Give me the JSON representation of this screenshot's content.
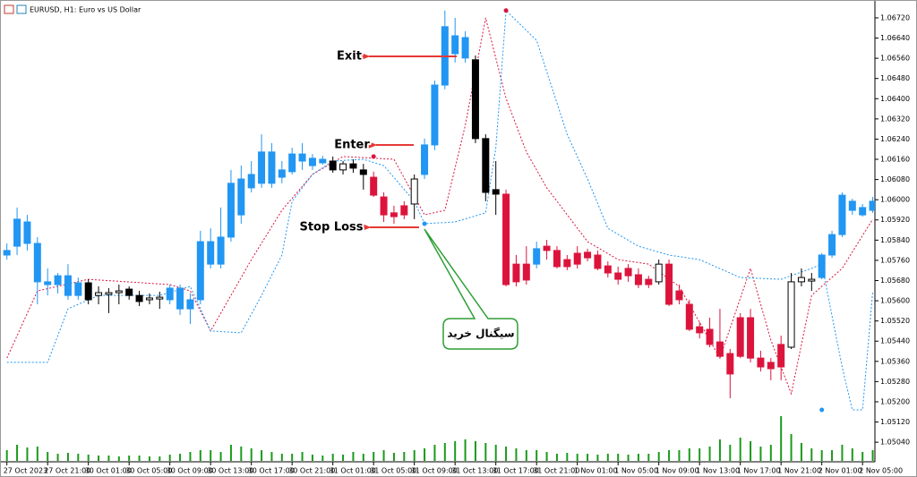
{
  "chart_data": {
    "type": "candlestick",
    "title": "EURUSD, H1:  Euro vs US Dollar",
    "categories": [
      "27 Oct 2023",
      null,
      null,
      null,
      "27 Oct 21:00",
      null,
      null,
      null,
      "30 Oct 01:00",
      null,
      null,
      null,
      "30 Oct 05:00",
      null,
      null,
      null,
      "30 Oct 09:00",
      null,
      null,
      null,
      "30 Oct 13:00",
      null,
      null,
      null,
      "30 Oct 17:00",
      null,
      null,
      null,
      "30 Oct 21:00",
      null,
      null,
      null,
      "31 Oct 01:00",
      null,
      null,
      null,
      "31 Oct 05:00",
      null,
      null,
      null,
      "31 Oct 09:00",
      null,
      null,
      null,
      "31 Oct 13:00",
      null,
      null,
      null,
      "31 Oct 17:00",
      null,
      null,
      null,
      "31 Oct 21:00",
      null,
      null,
      null,
      "1 Nov 01:00",
      null,
      null,
      null,
      "1 Nov 05:00",
      null,
      null,
      null,
      "1 Nov 09:00",
      null,
      null,
      null,
      "1 Nov 13:00",
      null,
      null,
      null,
      "1 Nov 17:00",
      null,
      null,
      null,
      "1 Nov 21:00",
      null,
      null,
      null,
      "2 Nov 01:00",
      null,
      null,
      null,
      "2 Nov 05:00",
      null
    ],
    "open": [
      1.05781,
      1.05816,
      1.05912,
      1.05827,
      1.05675,
      1.05664,
      1.05699,
      1.05621,
      1.05671,
      1.05621,
      1.05625,
      1.05632,
      1.05646,
      1.05621,
      1.05604,
      1.05607,
      1.05604,
      1.0565,
      1.05568,
      1.05604,
      1.05745,
      1.05745,
      1.05852,
      1.0594,
      1.06047,
      1.06065,
      1.06189,
      1.06089,
      1.06111,
      1.06153,
      1.06135,
      1.0616,
      1.06153,
      1.06118,
      1.06142,
      1.06118,
      1.06089,
      1.06011,
      1.05948,
      1.05976,
      1.05983,
      1.061,
      1.06217,
      1.06454,
      1.06578,
      1.06561,
      1.06554,
      1.06242,
      1.0604,
      1.06022,
      1.05745,
      1.05745,
      1.05745,
      1.05816,
      1.05799,
      1.05763,
      1.05788,
      1.05792,
      1.05781,
      1.05738,
      1.0571,
      1.05728,
      1.05703,
      1.05685,
      1.05675,
      1.05745,
      1.05639,
      1.05586,
      1.05497,
      1.05487,
      1.05437,
      1.05391,
      1.05533,
      1.05533,
      1.05373,
      1.05356,
      1.05427,
      1.05416,
      1.05675,
      1.05678,
      1.05692,
      1.05781,
      1.05862,
      1.05958,
      1.0594,
      1.05958
    ],
    "high": [
      1.05827,
      1.05969,
      1.0594,
      1.05852,
      1.05728,
      1.0571,
      1.05745,
      1.05692,
      1.05685,
      1.05657,
      1.0565,
      1.05664,
      1.05657,
      1.05639,
      1.05629,
      1.05636,
      1.05664,
      1.05664,
      1.05629,
      1.05877,
      1.05887,
      1.05969,
      1.06118,
      1.06135,
      1.06153,
      1.06259,
      1.06224,
      1.06153,
      1.06206,
      1.06224,
      1.06181,
      1.06174,
      1.06171,
      1.06153,
      1.0616,
      1.06142,
      1.06111,
      1.06029,
      1.05976,
      1.05994,
      1.061,
      1.06242,
      1.06472,
      1.06749,
      1.0672,
      1.06667,
      1.06571,
      1.06259,
      1.06153,
      1.0604,
      1.05781,
      1.05816,
      1.05834,
      1.05841,
      1.05816,
      1.05781,
      1.05816,
      1.05806,
      1.05799,
      1.05756,
      1.05735,
      1.05745,
      1.05728,
      1.05699,
      1.05763,
      1.05763,
      1.05664,
      1.05604,
      1.05515,
      1.05533,
      1.05568,
      1.05409,
      1.05551,
      1.05568,
      1.05402,
      1.05373,
      1.05462,
      1.0571,
      1.05728,
      1.0571,
      1.05788,
      1.05877,
      1.06029,
      1.06004,
      1.05983,
      1.06011
    ],
    "low": [
      1.05763,
      1.05781,
      1.05799,
      1.05586,
      1.05621,
      1.05629,
      1.05604,
      1.05604,
      1.05586,
      1.05586,
      1.05551,
      1.05586,
      1.05604,
      1.05579,
      1.05586,
      1.05568,
      1.05586,
      1.05544,
      1.05508,
      1.05586,
      1.05728,
      1.05728,
      1.05834,
      1.05905,
      1.06029,
      1.06047,
      1.06047,
      1.06065,
      1.061,
      1.06118,
      1.06118,
      1.06139,
      1.06107,
      1.061,
      1.06107,
      1.0604,
      1.06011,
      1.05912,
      1.05905,
      1.05923,
      1.05923,
      1.06082,
      1.06196,
      1.06437,
      1.06543,
      1.06543,
      1.06224,
      1.05994,
      1.0594,
      1.05657,
      1.05657,
      1.05664,
      1.05728,
      1.05763,
      1.05728,
      1.05721,
      1.05728,
      1.05756,
      1.05721,
      1.05692,
      1.05664,
      1.05675,
      1.0565,
      1.0565,
      1.05664,
      1.05579,
      1.05586,
      1.0548,
      1.05451,
      1.05416,
      1.05373,
      1.05214,
      1.05373,
      1.05356,
      1.0532,
      1.05285,
      1.05285,
      1.05409,
      1.05657,
      1.05639,
      1.05685,
      1.0577,
      1.05852,
      1.0594,
      1.05933,
      1.05948
    ],
    "close": [
      1.05799,
      1.05923,
      1.05827,
      1.05675,
      1.05664,
      1.05699,
      1.05621,
      1.05671,
      1.05604,
      1.05632,
      1.05632,
      1.05639,
      1.05621,
      1.05597,
      1.05611,
      1.05614,
      1.0565,
      1.05568,
      1.05604,
      1.05834,
      1.05834,
      1.05852,
      1.06065,
      1.06082,
      1.061,
      1.06189,
      1.06065,
      1.06118,
      1.06181,
      1.06181,
      1.06164,
      1.06146,
      1.06118,
      1.06142,
      1.06125,
      1.061,
      1.06018,
      1.0594,
      1.05933,
      1.0594,
      1.06082,
      1.06217,
      1.06454,
      1.06685,
      1.06649,
      1.06642,
      1.06242,
      1.06029,
      1.06022,
      1.05664,
      1.05675,
      1.05682,
      1.05806,
      1.05799,
      1.05735,
      1.05735,
      1.05745,
      1.0577,
      1.05728,
      1.0571,
      1.05685,
      1.05699,
      1.05664,
      1.05664,
      1.05745,
      1.05586,
      1.05604,
      1.05487,
      1.05473,
      1.05427,
      1.0538,
      1.0531,
      1.0538,
      1.05373,
      1.05338,
      1.05331,
      1.05338,
      1.05675,
      1.05692,
      1.05685,
      1.05781,
      1.05862,
      1.06018,
      1.05994,
      1.05969,
      1.05994
    ],
    "colors": [
      "#2196f3",
      "#2196f3",
      "#2196f3",
      "#2196f3",
      "#2196f3",
      "#2196f3",
      "#2196f3",
      "#2196f3",
      "#000000",
      "#ffffff",
      "#ffffff",
      "#ffffff",
      "#000000",
      "#000000",
      "#ffffff",
      "#ffffff",
      "#2196f3",
      "#2196f3",
      "#2196f3",
      "#2196f3",
      "#2196f3",
      "#2196f3",
      "#2196f3",
      "#2196f3",
      "#2196f3",
      "#2196f3",
      "#2196f3",
      "#2196f3",
      "#2196f3",
      "#2196f3",
      "#2196f3",
      "#2196f3",
      "#000000",
      "#ffffff",
      "#000000",
      "#000000",
      "#dc143c",
      "#dc143c",
      "#dc143c",
      "#dc143c",
      "#ffffff",
      "#2196f3",
      "#2196f3",
      "#2196f3",
      "#2196f3",
      "#2196f3",
      "#000000",
      "#000000",
      "#000000",
      "#dc143c",
      "#dc143c",
      "#dc143c",
      "#2196f3",
      "#dc143c",
      "#dc143c",
      "#dc143c",
      "#dc143c",
      "#dc143c",
      "#dc143c",
      "#dc143c",
      "#dc143c",
      "#dc143c",
      "#dc143c",
      "#dc143c",
      "#ffffff",
      "#dc143c",
      "#dc143c",
      "#dc143c",
      "#dc143c",
      "#dc143c",
      "#dc143c",
      "#dc143c",
      "#dc143c",
      "#dc143c",
      "#dc143c",
      "#dc143c",
      "#dc143c",
      "#ffffff",
      "#ffffff",
      "#ffffff",
      "#2196f3",
      "#2196f3",
      "#2196f3",
      "#2196f3",
      "#2196f3",
      "#2196f3"
    ],
    "volume": [
      12,
      18,
      15,
      16,
      10,
      8,
      9,
      8,
      7,
      6,
      6,
      5,
      6,
      6,
      5,
      5,
      7,
      8,
      10,
      12,
      12,
      10,
      18,
      16,
      14,
      12,
      10,
      8,
      8,
      10,
      7,
      6,
      8,
      7,
      10,
      8,
      10,
      12,
      9,
      10,
      12,
      14,
      18,
      20,
      22,
      24,
      22,
      20,
      18,
      16,
      14,
      12,
      12,
      10,
      8,
      9,
      8,
      8,
      7,
      8,
      8,
      7,
      8,
      8,
      10,
      12,
      12,
      14,
      14,
      16,
      24,
      18,
      26,
      22,
      16,
      18,
      50,
      30,
      20,
      14,
      12,
      12,
      18,
      14,
      10,
      12
    ],
    "volume_color": "#1a9a1a",
    "series": [
      {
        "color": "#dc143c",
        "x": [
          0,
          3,
          8,
          16,
          18,
          20,
          24,
          27,
          30,
          33,
          38,
          41,
          43,
          45,
          47,
          49,
          51,
          53,
          57,
          60,
          63,
          66,
          70,
          73,
          75,
          77,
          79,
          82,
          85
        ],
        "values": [
          1.05373,
          1.05639,
          1.05685,
          1.05664,
          1.05639,
          1.0548,
          1.05763,
          1.05958,
          1.061,
          1.06171,
          1.0616,
          1.0594,
          1.05958,
          1.06295,
          1.0672,
          1.06401,
          1.06189,
          1.06047,
          1.05834,
          1.05763,
          1.05745,
          1.05657,
          1.05373,
          1.05728,
          1.05444,
          1.05232,
          1.05621,
          1.05728,
          1.05923
        ]
      },
      {
        "color": "#2196f3",
        "x": [
          0,
          4,
          6,
          9,
          15,
          18,
          20,
          23,
          25,
          27,
          28,
          30,
          32,
          35,
          37,
          40,
          41,
          44,
          47,
          48,
          49,
          52,
          55,
          57,
          59,
          62,
          65,
          68,
          72,
          76,
          79,
          80,
          82,
          83,
          84,
          85
        ],
        "values": [
          1.05356,
          1.05356,
          1.05568,
          1.05621,
          1.05621,
          1.05657,
          1.0548,
          1.05473,
          1.05621,
          1.05781,
          1.05994,
          1.061,
          1.06153,
          1.0616,
          1.06135,
          1.05994,
          1.05905,
          1.05912,
          1.05948,
          1.06206,
          1.06749,
          1.06631,
          1.06259,
          1.06082,
          1.05887,
          1.05816,
          1.05781,
          1.05763,
          1.05692,
          1.05685,
          1.05728,
          1.05745,
          1.05338,
          1.05168,
          1.05168,
          1.05639
        ]
      }
    ],
    "markers": [
      {
        "color": "#dc143c",
        "x": [
          36,
          49
        ],
        "values": [
          1.06171,
          1.06749
        ]
      },
      {
        "color": "#2196f3",
        "x": [
          41,
          80
        ],
        "values": [
          1.05905,
          1.05168
        ]
      }
    ],
    "ylim": [
      1.04966,
      1.06773
    ],
    "yticks": [
      {
        "value": 1.0504,
        "label": "1.05040"
      },
      {
        "value": 1.0512,
        "label": "1.05120"
      },
      {
        "value": 1.052,
        "label": "1.05200"
      },
      {
        "value": 1.0528,
        "label": "1.05280"
      },
      {
        "value": 1.0536,
        "label": "1.05360"
      },
      {
        "value": 1.0544,
        "label": "1.05440"
      },
      {
        "value": 1.0552,
        "label": "1.05520"
      },
      {
        "value": 1.056,
        "label": "1.05600"
      },
      {
        "value": 1.0568,
        "label": "1.05680"
      },
      {
        "value": 1.0576,
        "label": "1.05760"
      },
      {
        "value": 1.0584,
        "label": "1.05840"
      },
      {
        "value": 1.0592,
        "label": "1.05920"
      },
      {
        "value": 1.06,
        "label": "1.06000"
      },
      {
        "value": 1.0608,
        "label": "1.06080"
      },
      {
        "value": 1.0616,
        "label": "1.06160"
      },
      {
        "value": 1.0624,
        "label": "1.06240"
      },
      {
        "value": 1.0632,
        "label": "1.06320"
      },
      {
        "value": 1.064,
        "label": "1.06400"
      },
      {
        "value": 1.0648,
        "label": "1.06480"
      },
      {
        "value": 1.0656,
        "label": "1.06560"
      },
      {
        "value": 1.0664,
        "label": "1.06640"
      },
      {
        "value": 1.0672,
        "label": "1.06720"
      }
    ],
    "annotations": [
      {
        "text": "Exit",
        "color": "#1f3fd1"
      },
      {
        "text": "Enter",
        "color": "#2e9e35"
      },
      {
        "text": "Stop Loss",
        "color": "#e8413c"
      },
      {
        "text": "سیگنال خرید",
        "color": "#000000"
      }
    ]
  }
}
